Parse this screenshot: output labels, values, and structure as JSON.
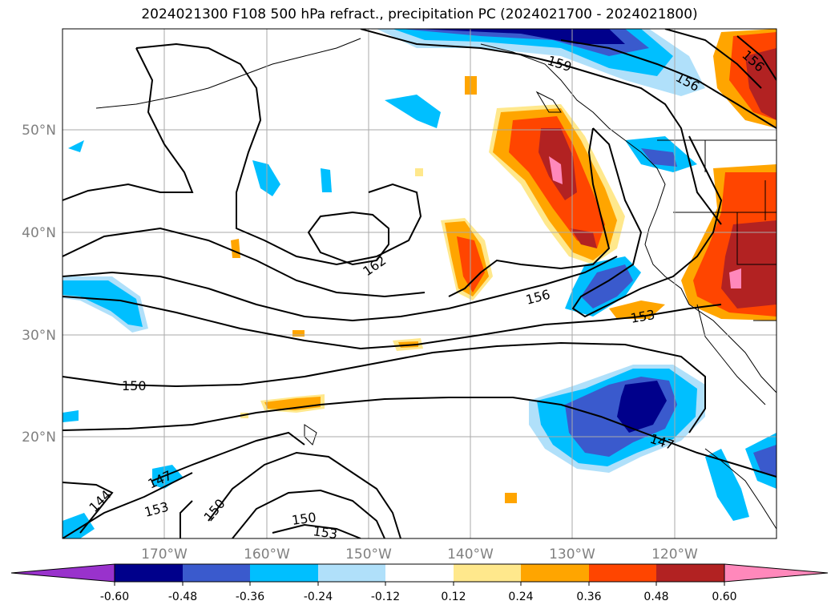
{
  "title": "2024021300 F108 500 hPa refract., precipitation PC (2024021700 - 2024021800)",
  "lat_labels": [
    "50°N",
    "40°N",
    "30°N",
    "20°N"
  ],
  "lon_labels": [
    "170°W",
    "160°W",
    "150°W",
    "140°W",
    "130°W",
    "120°W"
  ],
  "colorbar": {
    "ticks": [
      "-0.60",
      "-0.48",
      "-0.36",
      "-0.24",
      "-0.12",
      "0.12",
      "0.24",
      "0.36",
      "0.48",
      "0.60"
    ],
    "colors": [
      "#9932cc",
      "#00008b",
      "#3a5acd",
      "#00bfff",
      "#b0e0fa",
      "#ffffff",
      "#ffe88c",
      "#ffa500",
      "#ff4500",
      "#b22222",
      "#ff88bb"
    ]
  },
  "contour_labels": [
    "159",
    "156",
    "156",
    "162",
    "156",
    "153",
    "150",
    "147",
    "147",
    "144",
    "153",
    "150",
    "150",
    "153"
  ],
  "colors": {
    "contour": "#000000",
    "grid": "#aaaaaa",
    "coast": "#000000"
  }
}
